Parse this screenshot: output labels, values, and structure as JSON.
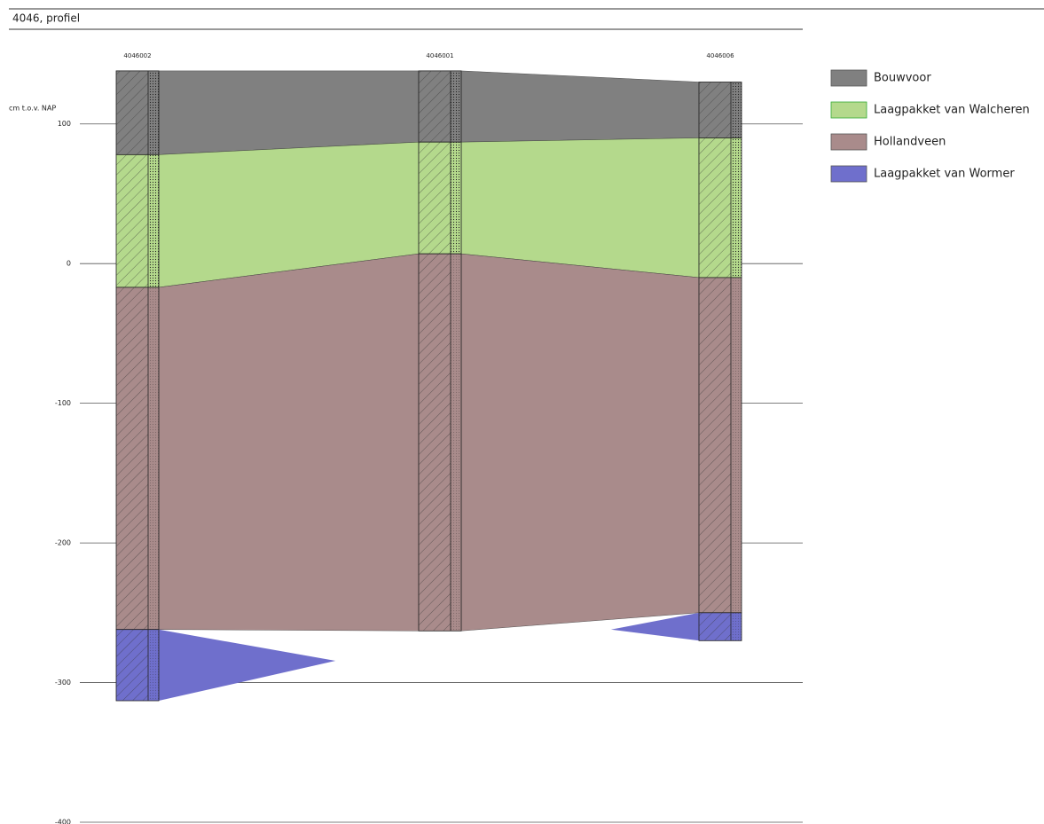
{
  "chart_data": {
    "type": "profile",
    "title": "4046, profiel",
    "ylabel": "cm t.o.v. NAP",
    "categories": [
      "4046002",
      "4046001",
      "4046006"
    ],
    "series": [
      {
        "name": "Bouwvoor",
        "color": "#808080",
        "top": [
          138,
          138,
          130
        ],
        "bottom": [
          78,
          87,
          90
        ]
      },
      {
        "name": "Laagpakket van Walcheren",
        "color": "#b4d98c",
        "top": [
          78,
          87,
          90
        ],
        "bottom": [
          -17,
          7,
          -10
        ]
      },
      {
        "name": "Hollandveen",
        "color": "#a98b8b",
        "top": [
          -17,
          7,
          -10
        ],
        "bottom": [
          -262,
          -263,
          -250
        ]
      },
      {
        "name": "Laagpakket van Wormer",
        "color": "#6f6fcc",
        "top": [
          -262,
          null,
          -250
        ],
        "bottom": [
          -313,
          null,
          -270
        ]
      }
    ],
    "ylim": [
      -400,
      150
    ],
    "yticks": [
      100,
      0,
      -100,
      -200,
      -300,
      -400
    ],
    "grid": true,
    "legend": "right"
  }
}
